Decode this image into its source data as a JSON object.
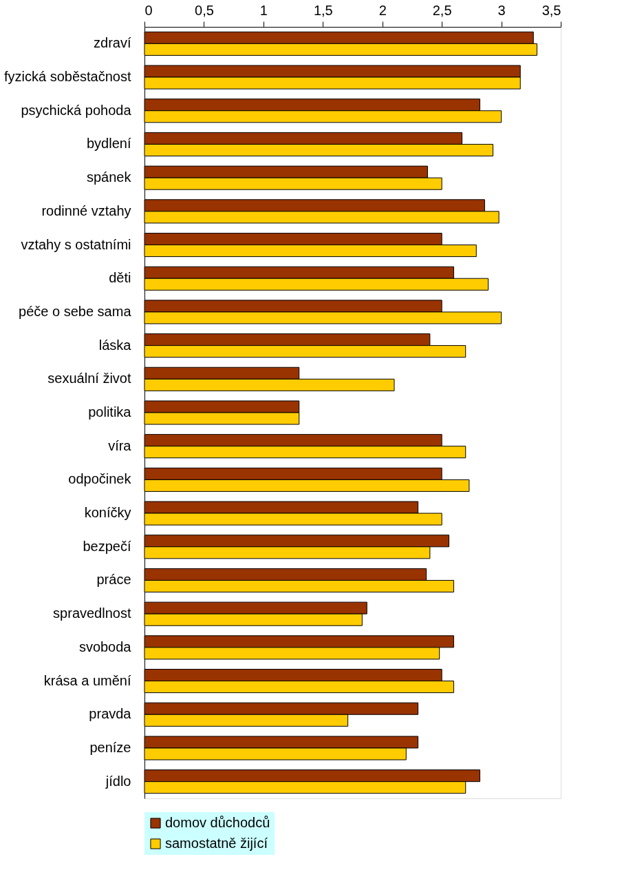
{
  "chart_data": {
    "type": "bar",
    "orientation": "horizontal",
    "categories": [
      "zdraví",
      "fyzická soběstačnost",
      "psychická pohoda",
      "bydlení",
      "spánek",
      "rodinné vztahy",
      "vztahy s ostatními",
      "děti",
      "péče o sebe sama",
      "láska",
      "sexuální život",
      "politika",
      "víra",
      "odpočinek",
      "koníčky",
      "bezpečí",
      "práce",
      "spravedlnost",
      "svoboda",
      "krása a umění",
      "pravda",
      "peníze",
      "jídlo"
    ],
    "series": [
      {
        "name": "domov důchodců",
        "color": "#993300",
        "values": [
          3.27,
          3.16,
          2.82,
          2.67,
          2.38,
          2.86,
          2.5,
          2.6,
          2.5,
          2.4,
          1.3,
          1.3,
          2.5,
          2.5,
          2.3,
          2.56,
          2.37,
          1.87,
          2.6,
          2.5,
          2.3,
          2.3,
          2.82
        ]
      },
      {
        "name": "samostatně žijící",
        "color": "#ffcc00",
        "values": [
          3.3,
          3.16,
          3.0,
          2.93,
          2.5,
          2.98,
          2.79,
          2.89,
          3.0,
          2.7,
          2.1,
          1.3,
          2.7,
          2.73,
          2.5,
          2.4,
          2.6,
          1.83,
          2.48,
          2.6,
          1.71,
          2.2,
          2.7
        ]
      }
    ],
    "xlim": [
      0,
      3.5
    ],
    "xticks": [
      {
        "value": 0,
        "label": "0"
      },
      {
        "value": 0.5,
        "label": "0,5"
      },
      {
        "value": 1,
        "label": "1"
      },
      {
        "value": 1.5,
        "label": "1,5"
      },
      {
        "value": 2,
        "label": "2"
      },
      {
        "value": 2.5,
        "label": "2,5"
      },
      {
        "value": 3,
        "label": "3"
      },
      {
        "value": 3.5,
        "label": "3,5"
      }
    ],
    "grid": false,
    "legend": "bottom"
  }
}
